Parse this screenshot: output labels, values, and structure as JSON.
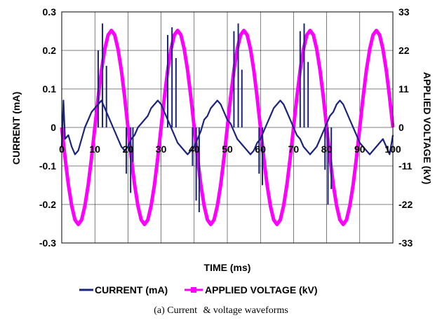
{
  "chart_data": {
    "type": "line",
    "title": "",
    "xlabel": "TIME (ms)",
    "ylabel": "CURRENT (mA)",
    "y2label": "APPLIED VOLTAGE (kV)",
    "xlim": [
      0,
      100
    ],
    "ylim": [
      -0.3,
      0.3
    ],
    "y2lim": [
      -33,
      33
    ],
    "x_ticks": [
      "0",
      "10",
      "20",
      "30",
      "40",
      "50",
      "60",
      "70",
      "80",
      "90",
      "100"
    ],
    "y_ticks": [
      "0.3",
      "0.2",
      "0.1",
      "0",
      "-0.1",
      "-0.2",
      "-0.3"
    ],
    "y2_ticks": [
      "33",
      "22",
      "11",
      "0",
      "-11",
      "-22",
      "-33"
    ],
    "grid": true,
    "legend_position": "bottom",
    "colors": {
      "current": "#1a237e",
      "voltage": "#ff00ff"
    },
    "series": [
      {
        "name": "CURRENT (mA)",
        "axis": "left",
        "x": [
          0,
          0.5,
          1,
          2,
          3,
          4,
          5,
          6,
          7,
          8,
          9,
          10,
          11,
          12,
          13,
          14,
          15,
          16,
          17,
          18,
          19,
          20,
          21,
          22,
          23,
          24,
          25,
          26,
          27,
          28,
          29,
          30,
          31,
          32,
          33,
          34,
          35,
          36,
          37,
          38,
          39,
          40,
          41,
          42,
          43,
          44,
          45,
          46,
          47,
          48,
          49,
          50,
          51,
          52,
          53,
          54,
          55,
          56,
          57,
          58,
          59,
          60,
          61,
          62,
          63,
          64,
          65,
          66,
          67,
          68,
          69,
          70,
          71,
          72,
          73,
          74,
          75,
          76,
          77,
          78,
          79,
          80,
          81,
          82,
          83,
          84,
          85,
          86,
          87,
          88,
          89,
          90,
          91,
          92,
          93,
          94,
          95,
          96,
          97,
          98,
          99,
          100
        ],
        "values": [
          -0.05,
          0.07,
          -0.03,
          -0.02,
          -0.05,
          -0.07,
          -0.06,
          -0.03,
          0.0,
          0.02,
          0.04,
          0.05,
          0.06,
          0.07,
          0.05,
          0.03,
          0.01,
          -0.01,
          -0.03,
          -0.05,
          -0.06,
          -0.05,
          -0.03,
          -0.02,
          0.0,
          0.01,
          0.02,
          0.03,
          0.05,
          0.06,
          0.07,
          0.06,
          0.04,
          0.02,
          0.0,
          -0.02,
          -0.04,
          -0.05,
          -0.06,
          -0.07,
          -0.06,
          -0.05,
          -0.03,
          -0.01,
          0.02,
          0.03,
          0.05,
          0.06,
          0.07,
          0.06,
          0.04,
          0.02,
          0.01,
          -0.01,
          -0.03,
          -0.04,
          -0.05,
          -0.06,
          -0.07,
          -0.06,
          -0.04,
          -0.03,
          -0.01,
          0.01,
          0.03,
          0.05,
          0.06,
          0.07,
          0.06,
          0.04,
          0.02,
          0.0,
          -0.02,
          -0.03,
          -0.05,
          -0.06,
          -0.07,
          -0.06,
          -0.05,
          -0.03,
          -0.01,
          0.01,
          0.03,
          0.04,
          0.06,
          0.07,
          0.06,
          0.04,
          0.02,
          0.0,
          -0.02,
          -0.04,
          -0.05,
          -0.06,
          -0.07,
          -0.06,
          -0.05,
          -0.04,
          -0.03,
          -0.05,
          -0.07,
          -0.02
        ]
      },
      {
        "name": "APPLIED VOLTAGE (kV)",
        "axis": "right",
        "x": [
          0,
          1,
          2,
          3,
          4,
          5,
          6,
          7,
          8,
          9,
          10,
          11,
          12,
          13,
          14,
          15,
          16,
          17,
          18,
          19,
          20,
          21,
          22,
          23,
          24,
          25,
          26,
          27,
          28,
          29,
          30,
          31,
          32,
          33,
          34,
          35,
          36,
          37,
          38,
          39,
          40,
          41,
          42,
          43,
          44,
          45,
          46,
          47,
          48,
          49,
          50,
          51,
          52,
          53,
          54,
          55,
          56,
          57,
          58,
          59,
          60,
          61,
          62,
          63,
          64,
          65,
          66,
          67,
          68,
          69,
          70,
          71,
          72,
          73,
          74,
          75,
          76,
          77,
          78,
          79,
          80,
          81,
          82,
          83,
          84,
          85,
          86,
          87,
          88,
          89,
          90,
          91,
          92,
          93,
          94,
          95,
          96,
          97,
          98,
          99,
          100
        ],
        "values": [
          0.0,
          -8.6,
          -16.3,
          -22.4,
          -26.4,
          -27.7,
          -26.4,
          -22.4,
          -16.3,
          -8.6,
          0.0,
          8.6,
          16.3,
          22.4,
          26.4,
          27.7,
          26.4,
          22.4,
          16.3,
          8.6,
          0.0,
          -8.6,
          -16.3,
          -22.4,
          -26.4,
          -27.7,
          -26.4,
          -22.4,
          -16.3,
          -8.6,
          0.0,
          8.6,
          16.3,
          22.4,
          26.4,
          27.7,
          26.4,
          22.4,
          16.3,
          8.6,
          0.0,
          -8.6,
          -16.3,
          -22.4,
          -26.4,
          -27.7,
          -26.4,
          -22.4,
          -16.3,
          -8.6,
          0.0,
          8.6,
          16.3,
          22.4,
          26.4,
          27.7,
          26.4,
          22.4,
          16.3,
          8.6,
          0.0,
          -8.6,
          -16.3,
          -22.4,
          -26.4,
          -27.7,
          -26.4,
          -22.4,
          -16.3,
          -8.6,
          0.0,
          8.6,
          16.3,
          22.4,
          26.4,
          27.7,
          26.4,
          22.4,
          16.3,
          8.6,
          0.0,
          -8.6,
          -16.3,
          -22.4,
          -26.4,
          -27.7,
          -26.4,
          -22.4,
          -16.3,
          -8.6,
          0.0,
          8.6,
          16.3,
          22.4,
          26.4,
          27.7,
          26.4,
          22.4,
          16.3,
          8.6,
          0.0
        ]
      }
    ],
    "spikes": {
      "name": "CURRENT (mA)",
      "x": [
        11,
        12.3,
        13.5,
        19.5,
        20.8,
        21.5,
        32,
        33.3,
        34.5,
        39.5,
        40.6,
        41.5,
        52,
        53.3,
        54.4,
        59.6,
        60.6,
        72,
        73.2,
        74.4,
        79.5,
        80.4,
        81.4
      ],
      "values": [
        0.2,
        0.27,
        0.16,
        -0.12,
        -0.17,
        -0.09,
        0.24,
        0.26,
        0.18,
        -0.1,
        -0.19,
        -0.22,
        0.25,
        0.27,
        0.15,
        -0.12,
        -0.15,
        0.25,
        0.27,
        0.17,
        -0.11,
        -0.2,
        -0.16
      ]
    },
    "legend": [
      {
        "label": "CURRENT (mA)"
      },
      {
        "label": "APPLIED VOLTAGE (kV)"
      }
    ],
    "caption_lead": "(a) Current",
    "caption_tail": "& voltage waveforms"
  }
}
